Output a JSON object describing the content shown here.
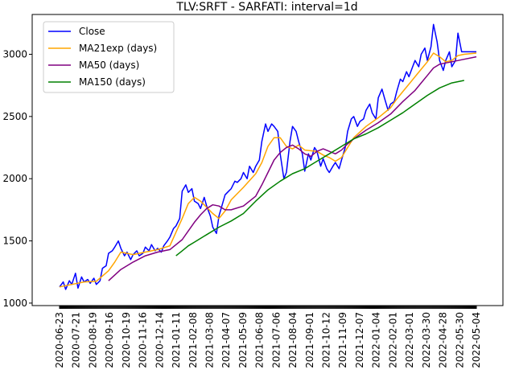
{
  "chart_data": {
    "type": "line",
    "title": "TLV:SRFT - SARFATI: interval=1d",
    "xlabel": "",
    "ylabel": "",
    "x_tick_labels": [
      "2020-06-23",
      "2020-07-21",
      "2020-08-19",
      "2020-09-16",
      "2020-10-19",
      "2020-11-16",
      "2020-12-14",
      "2021-01-11",
      "2021-02-08",
      "2021-03-08",
      "2021-04-07",
      "2021-05-09",
      "2021-06-08",
      "2021-07-06",
      "2021-08-04",
      "2021-09-01",
      "2021-10-12",
      "2021-11-09",
      "2021-12-07",
      "2022-01-04",
      "2022-02-01",
      "2022-03-01",
      "2022-03-30",
      "2022-04-28",
      "2022-05-30",
      "2022-05-04"
    ],
    "y_ticks": [
      1000,
      1500,
      2000,
      2500,
      3000
    ],
    "ylim": [
      980,
      3320
    ],
    "grid": false,
    "legend_position": "upper-left",
    "series": [
      {
        "name": "Close",
        "color": "#0000ff",
        "points": [
          [
            0,
            1130
          ],
          [
            0.3,
            1170
          ],
          [
            0.5,
            1110
          ],
          [
            0.8,
            1180
          ],
          [
            1,
            1150
          ],
          [
            1.3,
            1240
          ],
          [
            1.5,
            1120
          ],
          [
            1.8,
            1210
          ],
          [
            2,
            1170
          ],
          [
            2.3,
            1190
          ],
          [
            2.5,
            1160
          ],
          [
            2.8,
            1200
          ],
          [
            3,
            1150
          ],
          [
            3.3,
            1180
          ],
          [
            3.5,
            1280
          ],
          [
            3.8,
            1300
          ],
          [
            4,
            1400
          ],
          [
            4.3,
            1420
          ],
          [
            4.5,
            1450
          ],
          [
            4.8,
            1500
          ],
          [
            5,
            1440
          ],
          [
            5.3,
            1380
          ],
          [
            5.5,
            1410
          ],
          [
            5.8,
            1350
          ],
          [
            6,
            1390
          ],
          [
            6.3,
            1420
          ],
          [
            6.5,
            1380
          ],
          [
            6.8,
            1400
          ],
          [
            7,
            1450
          ],
          [
            7.3,
            1420
          ],
          [
            7.5,
            1470
          ],
          [
            7.8,
            1420
          ],
          [
            8,
            1440
          ],
          [
            8.3,
            1410
          ],
          [
            8.5,
            1460
          ],
          [
            8.8,
            1500
          ],
          [
            9,
            1530
          ],
          [
            9.3,
            1600
          ],
          [
            9.5,
            1620
          ],
          [
            9.8,
            1680
          ],
          [
            10,
            1900
          ],
          [
            10.3,
            1950
          ],
          [
            10.5,
            1890
          ],
          [
            10.8,
            1920
          ],
          [
            11,
            1820
          ],
          [
            11.3,
            1800
          ],
          [
            11.5,
            1760
          ],
          [
            11.8,
            1850
          ],
          [
            12,
            1780
          ],
          [
            12.3,
            1700
          ],
          [
            12.5,
            1610
          ],
          [
            12.8,
            1560
          ],
          [
            13,
            1700
          ],
          [
            13.3,
            1800
          ],
          [
            13.5,
            1870
          ],
          [
            13.8,
            1900
          ],
          [
            14,
            1920
          ],
          [
            14.3,
            1980
          ],
          [
            14.5,
            1970
          ],
          [
            14.8,
            2000
          ],
          [
            15,
            2050
          ],
          [
            15.3,
            2000
          ],
          [
            15.5,
            2100
          ],
          [
            15.8,
            2050
          ],
          [
            16,
            2100
          ],
          [
            16.3,
            2150
          ],
          [
            16.5,
            2300
          ],
          [
            16.8,
            2440
          ],
          [
            17,
            2380
          ],
          [
            17.3,
            2440
          ],
          [
            17.5,
            2420
          ],
          [
            17.8,
            2380
          ],
          [
            18,
            2200
          ],
          [
            18.3,
            2000
          ],
          [
            18.5,
            2050
          ],
          [
            18.8,
            2300
          ],
          [
            19,
            2420
          ],
          [
            19.3,
            2380
          ],
          [
            19.5,
            2300
          ],
          [
            19.8,
            2200
          ],
          [
            20,
            2060
          ],
          [
            20.3,
            2200
          ],
          [
            20.5,
            2150
          ],
          [
            20.8,
            2250
          ],
          [
            21,
            2220
          ],
          [
            21.3,
            2100
          ],
          [
            21.5,
            2160
          ],
          [
            21.8,
            2080
          ],
          [
            22,
            2050
          ],
          [
            22.3,
            2100
          ],
          [
            22.5,
            2130
          ],
          [
            22.8,
            2080
          ],
          [
            23,
            2150
          ],
          [
            23.3,
            2250
          ],
          [
            23.5,
            2380
          ],
          [
            23.8,
            2480
          ],
          [
            24,
            2500
          ],
          [
            24.3,
            2420
          ],
          [
            24.5,
            2460
          ],
          [
            24.8,
            2480
          ],
          [
            25,
            2550
          ],
          [
            25.3,
            2600
          ],
          [
            25.5,
            2530
          ],
          [
            25.8,
            2480
          ],
          [
            26,
            2650
          ],
          [
            26.3,
            2720
          ],
          [
            26.5,
            2650
          ],
          [
            26.8,
            2550
          ],
          [
            27,
            2600
          ],
          [
            27.3,
            2620
          ],
          [
            27.5,
            2700
          ],
          [
            27.8,
            2800
          ],
          [
            28,
            2780
          ],
          [
            28.3,
            2860
          ],
          [
            28.5,
            2820
          ],
          [
            28.8,
            2900
          ],
          [
            29,
            2950
          ],
          [
            29.3,
            2900
          ],
          [
            29.5,
            3000
          ],
          [
            29.8,
            3050
          ],
          [
            30,
            2950
          ],
          [
            30.3,
            3060
          ],
          [
            30.5,
            3240
          ],
          [
            30.8,
            3100
          ],
          [
            31,
            2950
          ],
          [
            31.3,
            2870
          ],
          [
            31.5,
            2950
          ],
          [
            31.8,
            3020
          ],
          [
            32,
            2900
          ],
          [
            32.3,
            2950
          ],
          [
            32.5,
            3170
          ],
          [
            32.8,
            3020
          ],
          [
            33,
            3020
          ],
          [
            33.3,
            3020
          ],
          [
            33.5,
            3020
          ],
          [
            33.8,
            3020
          ],
          [
            34,
            3020
          ]
        ]
      },
      {
        "name": "MA21exp (days)",
        "color": "#ffa500",
        "points": [
          [
            0,
            1130
          ],
          [
            1,
            1150
          ],
          [
            2,
            1170
          ],
          [
            3,
            1175
          ],
          [
            4,
            1260
          ],
          [
            4.5,
            1330
          ],
          [
            5,
            1410
          ],
          [
            6,
            1390
          ],
          [
            7,
            1410
          ],
          [
            8,
            1430
          ],
          [
            9,
            1460
          ],
          [
            10,
            1680
          ],
          [
            10.5,
            1800
          ],
          [
            11,
            1850
          ],
          [
            11.5,
            1820
          ],
          [
            12,
            1770
          ],
          [
            12.5,
            1720
          ],
          [
            13,
            1680
          ],
          [
            13.5,
            1740
          ],
          [
            14,
            1830
          ],
          [
            15,
            1930
          ],
          [
            16,
            2040
          ],
          [
            16.5,
            2130
          ],
          [
            17,
            2260
          ],
          [
            17.5,
            2330
          ],
          [
            18,
            2330
          ],
          [
            18.5,
            2260
          ],
          [
            19,
            2240
          ],
          [
            19.5,
            2270
          ],
          [
            20,
            2230
          ],
          [
            21,
            2220
          ],
          [
            21.5,
            2190
          ],
          [
            22,
            2170
          ],
          [
            22.5,
            2140
          ],
          [
            23,
            2170
          ],
          [
            23.5,
            2250
          ],
          [
            24,
            2330
          ],
          [
            25,
            2420
          ],
          [
            26,
            2490
          ],
          [
            27,
            2570
          ],
          [
            27.5,
            2640
          ],
          [
            28,
            2700
          ],
          [
            29,
            2820
          ],
          [
            29.5,
            2880
          ],
          [
            30,
            2940
          ],
          [
            30.5,
            3010
          ],
          [
            31,
            2980
          ],
          [
            31.5,
            2940
          ],
          [
            32,
            2950
          ],
          [
            32.5,
            2990
          ],
          [
            33,
            3000
          ],
          [
            34,
            3010
          ]
        ]
      },
      {
        "name": "MA50 (days)",
        "color": "#800080",
        "points": [
          [
            4,
            1180
          ],
          [
            5,
            1270
          ],
          [
            6,
            1330
          ],
          [
            7,
            1380
          ],
          [
            8,
            1410
          ],
          [
            9,
            1430
          ],
          [
            10,
            1510
          ],
          [
            10.5,
            1580
          ],
          [
            11,
            1650
          ],
          [
            11.5,
            1710
          ],
          [
            12,
            1760
          ],
          [
            12.5,
            1790
          ],
          [
            13,
            1780
          ],
          [
            13.5,
            1750
          ],
          [
            14,
            1750
          ],
          [
            15,
            1780
          ],
          [
            16,
            1860
          ],
          [
            16.5,
            1950
          ],
          [
            17,
            2050
          ],
          [
            17.5,
            2150
          ],
          [
            18,
            2210
          ],
          [
            18.5,
            2250
          ],
          [
            19,
            2270
          ],
          [
            19.5,
            2240
          ],
          [
            20,
            2200
          ],
          [
            20.5,
            2180
          ],
          [
            21,
            2220
          ],
          [
            21.5,
            2240
          ],
          [
            22,
            2220
          ],
          [
            22.5,
            2200
          ],
          [
            23,
            2230
          ],
          [
            23.5,
            2280
          ],
          [
            24,
            2320
          ],
          [
            25,
            2390
          ],
          [
            26,
            2450
          ],
          [
            27,
            2520
          ],
          [
            28,
            2620
          ],
          [
            29,
            2710
          ],
          [
            29.5,
            2770
          ],
          [
            30,
            2830
          ],
          [
            30.5,
            2890
          ],
          [
            31,
            2920
          ],
          [
            31.5,
            2930
          ],
          [
            32,
            2940
          ],
          [
            33,
            2960
          ],
          [
            34,
            2980
          ]
        ]
      },
      {
        "name": "MA150 (days)",
        "color": "#008000",
        "points": [
          [
            9.5,
            1380
          ],
          [
            10,
            1420
          ],
          [
            10.5,
            1460
          ],
          [
            11,
            1490
          ],
          [
            12,
            1550
          ],
          [
            13,
            1610
          ],
          [
            14,
            1660
          ],
          [
            15,
            1720
          ],
          [
            16,
            1820
          ],
          [
            17,
            1910
          ],
          [
            18,
            1980
          ],
          [
            19,
            2040
          ],
          [
            20,
            2080
          ],
          [
            21,
            2140
          ],
          [
            22,
            2200
          ],
          [
            23,
            2260
          ],
          [
            24,
            2320
          ],
          [
            25,
            2360
          ],
          [
            26,
            2410
          ],
          [
            27,
            2470
          ],
          [
            28,
            2530
          ],
          [
            29,
            2600
          ],
          [
            30,
            2670
          ],
          [
            31,
            2730
          ],
          [
            32,
            2770
          ],
          [
            33,
            2790
          ]
        ]
      }
    ]
  }
}
